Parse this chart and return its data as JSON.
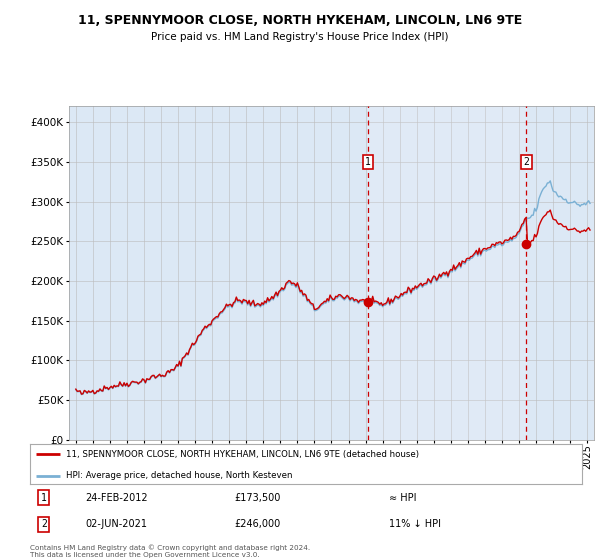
{
  "title_line1": "11, SPENNYMOOR CLOSE, NORTH HYKEHAM, LINCOLN, LN6 9TE",
  "title_line2": "Price paid vs. HM Land Registry's House Price Index (HPI)",
  "background_color": "#ffffff",
  "plot_bg_color": "#dce8f5",
  "grid_color": "#bbbbbb",
  "line_color_property": "#cc0000",
  "line_color_hpi": "#7ab0d4",
  "purchase1_year": 2012.14,
  "purchase1_price": 173500,
  "purchase2_year": 2021.42,
  "purchase2_price": 246000,
  "legend_line1": "11, SPENNYMOOR CLOSE, NORTH HYKEHAM, LINCOLN, LN6 9TE (detached house)",
  "legend_line2": "HPI: Average price, detached house, North Kesteven",
  "footer_line1": "Contains HM Land Registry data © Crown copyright and database right 2024.",
  "footer_line2": "This data is licensed under the Open Government Licence v3.0.",
  "note1_label": "1",
  "note1_date": "24-FEB-2012",
  "note1_price": "£173,500",
  "note1_rel": "≈ HPI",
  "note2_label": "2",
  "note2_date": "02-JUN-2021",
  "note2_price": "£246,000",
  "note2_rel": "11% ↓ HPI",
  "ylim": [
    0,
    420000
  ],
  "yticks": [
    0,
    50000,
    100000,
    150000,
    200000,
    250000,
    300000,
    350000,
    400000
  ],
  "xlim_start": 1994.6,
  "xlim_end": 2025.4
}
